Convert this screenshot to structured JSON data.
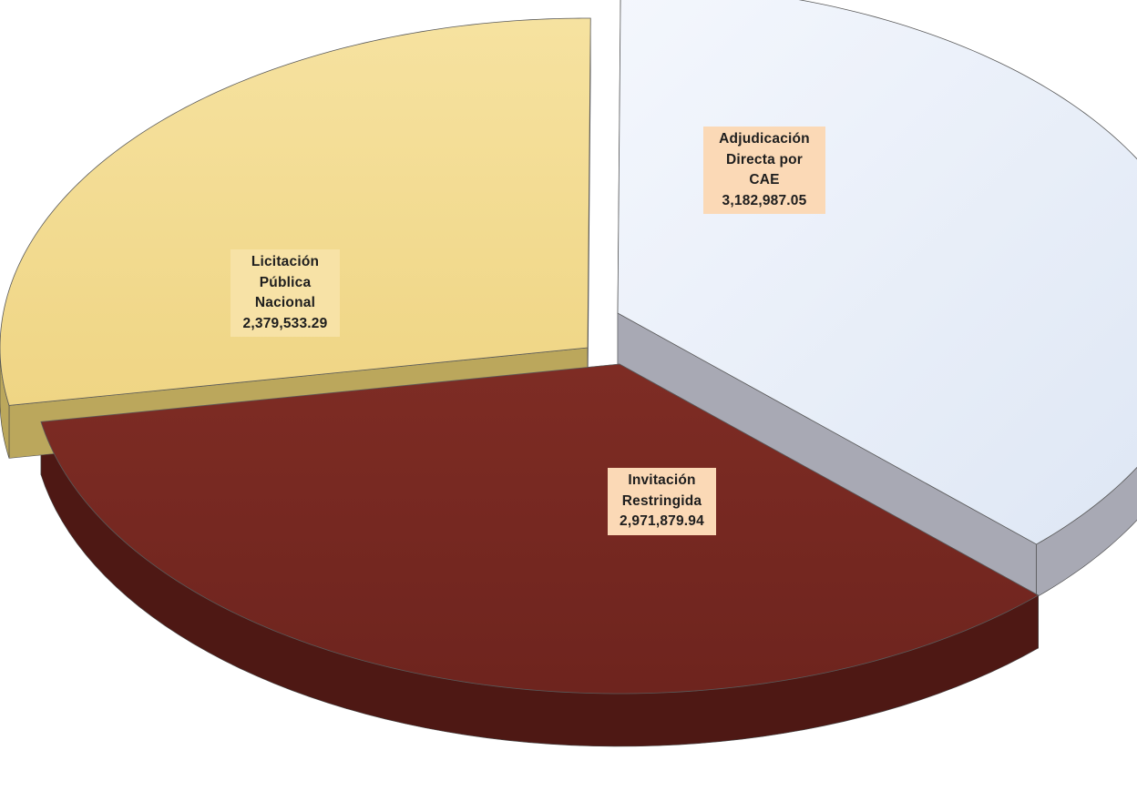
{
  "chart_data": {
    "type": "pie",
    "title": "",
    "slices": [
      {
        "name": "Adjudicación Directa por CAE",
        "label_lines": [
          "Adjudicación",
          "Directa por",
          "CAE"
        ],
        "value": 3182987.05,
        "value_text": "3,182,987.05",
        "color_top": "#e9eff9",
        "color_side": "#a8a9b4",
        "label_bg": "#fbd9b6"
      },
      {
        "name": "Invitación Restringida",
        "label_lines": [
          "Invitación",
          "Restringida"
        ],
        "value": 2971879.94,
        "value_text": "2,971,879.94",
        "color_top": "#7a2a23",
        "color_side": "#4e1814",
        "label_bg": "#fbd9b6"
      },
      {
        "name": "Licitación Pública Nacional",
        "label_lines": [
          "Licitación",
          "Pública",
          "Nacional"
        ],
        "value": 2379533.29,
        "value_text": "2,379,533.29",
        "color_top": "#f3dd93",
        "color_side": "#bba75c",
        "label_bg": "#f7e2a6"
      }
    ],
    "exploded": true,
    "style": "3d"
  }
}
